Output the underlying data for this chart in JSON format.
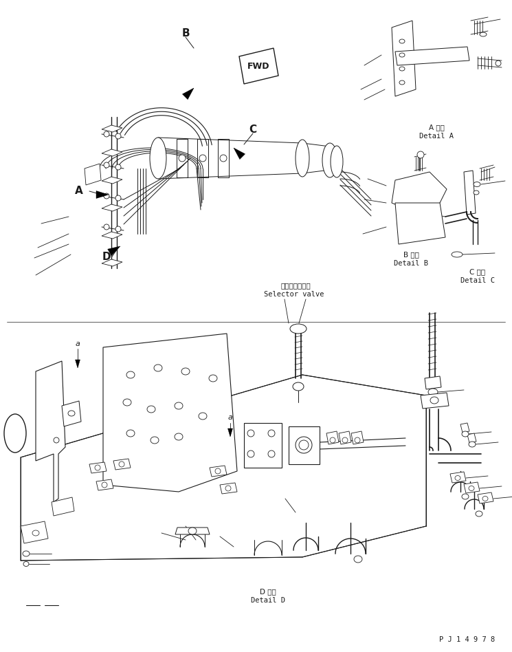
{
  "background_color": "#ffffff",
  "line_color": "#1a1a1a",
  "page_width": 7.45,
  "page_height": 9.48,
  "dpi": 100,
  "bottom_text": "P J 1 4 9 7 8",
  "detail_a_label": [
    "A 詳細",
    "Detail A"
  ],
  "detail_b_label": [
    "B 詳細",
    "Detail B"
  ],
  "detail_c_label": [
    "C 詳細",
    "Detail C"
  ],
  "detail_d_label": [
    "D 詳細",
    "Detail D"
  ],
  "selector_valve_jp": "セレクタバルブ",
  "selector_valve_en": "Selector valve",
  "fwd_text": "FWD",
  "zone_A": "A",
  "zone_B": "B",
  "zone_C": "C",
  "zone_D": "D",
  "small_a": "a"
}
